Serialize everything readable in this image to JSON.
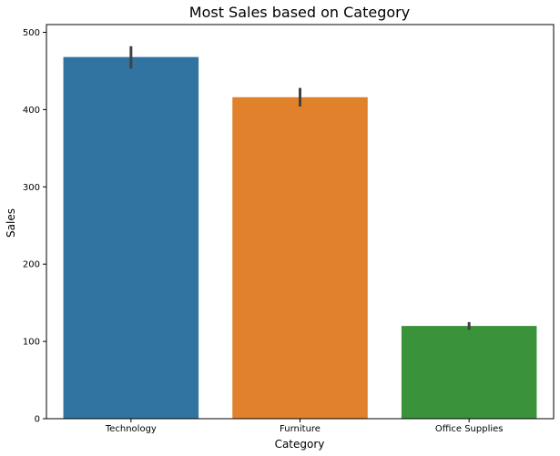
{
  "chart_data": {
    "type": "bar",
    "title": "Most Sales based on Category",
    "xlabel": "Category",
    "ylabel": "Sales",
    "categories": [
      "Technology",
      "Furniture",
      "Office Supplies"
    ],
    "values": [
      468,
      416,
      120
    ],
    "error_bars": [
      [
        453,
        482
      ],
      [
        404,
        428
      ],
      [
        115,
        125
      ]
    ],
    "colors": [
      "#3274a1",
      "#e1812c",
      "#3a923a"
    ],
    "error_color": "#424242",
    "ylim": [
      0,
      510
    ],
    "yticks": [
      0,
      100,
      200,
      300,
      400,
      500
    ],
    "grid": false
  }
}
